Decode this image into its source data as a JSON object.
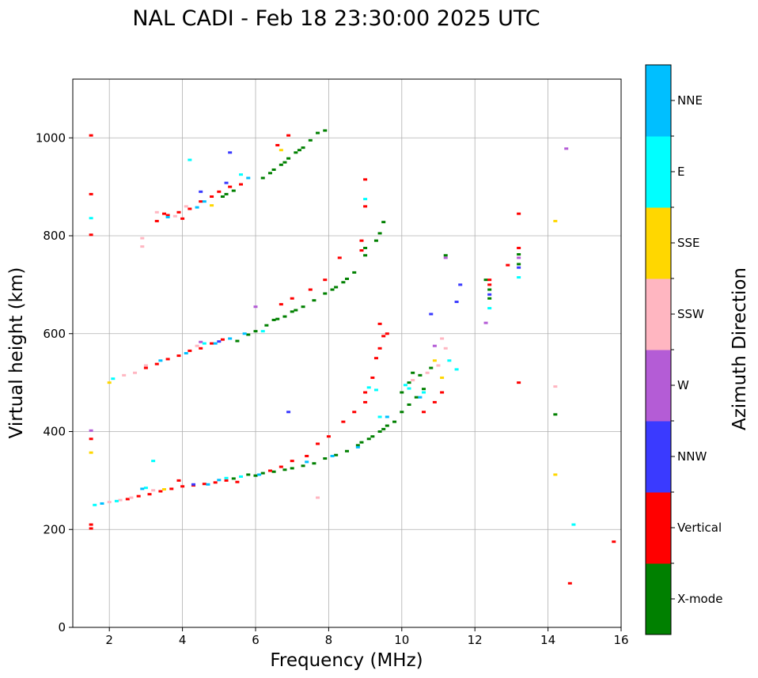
{
  "chart_data": {
    "type": "scatter",
    "title": "NAL CADI - Feb 18 23:30:00 2025 UTC",
    "xlabel": "Frequency (MHz)",
    "ylabel": "Virtual height (km)",
    "xlim": [
      1,
      16
    ],
    "ylim": [
      0,
      1120
    ],
    "xticks": [
      "2",
      "4",
      "6",
      "8",
      "10",
      "12",
      "14",
      "16"
    ],
    "yticks": [
      "0",
      "200",
      "400",
      "600",
      "800",
      "1000"
    ],
    "xtick_values": [
      2,
      4,
      6,
      8,
      10,
      12,
      14,
      16
    ],
    "ytick_values": [
      0,
      200,
      400,
      600,
      800,
      1000
    ],
    "grid": true,
    "colorbar": {
      "label": "Azimuth Direction",
      "categories": [
        "X-mode",
        "Vertical",
        "NNW",
        "W",
        "SSW",
        "SSE",
        "E",
        "NNE"
      ],
      "colors": [
        "#008000",
        "#ff0000",
        "#3a3aff",
        "#b45cd6",
        "#ffb6c1",
        "#ffd700",
        "#00ffff",
        "#00bfff"
      ]
    },
    "series": [
      {
        "name": "X-mode",
        "points": [
          [
            6.2,
            918
          ],
          [
            6.5,
            935
          ],
          [
            6.7,
            945
          ],
          [
            6.9,
            958
          ],
          [
            7.1,
            970
          ],
          [
            7.3,
            980
          ],
          [
            7.5,
            995
          ],
          [
            7.7,
            1010
          ],
          [
            7.9,
            1015
          ],
          [
            6.4,
            928
          ],
          [
            6.8,
            950
          ],
          [
            7.2,
            975
          ],
          [
            5.1,
            880
          ],
          [
            5.4,
            892
          ],
          [
            5.2,
            885
          ],
          [
            5.5,
            585
          ],
          [
            5.8,
            598
          ],
          [
            6.0,
            605
          ],
          [
            6.3,
            617
          ],
          [
            6.5,
            628
          ],
          [
            6.8,
            635
          ],
          [
            7.0,
            645
          ],
          [
            7.3,
            655
          ],
          [
            7.6,
            668
          ],
          [
            7.9,
            682
          ],
          [
            8.2,
            695
          ],
          [
            8.5,
            712
          ],
          [
            8.7,
            725
          ],
          [
            9.0,
            760
          ],
          [
            9.3,
            790
          ],
          [
            9.4,
            805
          ],
          [
            9.5,
            828
          ],
          [
            8.1,
            690
          ],
          [
            8.4,
            705
          ],
          [
            9.0,
            775
          ],
          [
            6.6,
            630
          ],
          [
            7.1,
            648
          ],
          [
            5.4,
            304
          ],
          [
            5.8,
            312
          ],
          [
            6.0,
            310
          ],
          [
            6.2,
            315
          ],
          [
            6.5,
            318
          ],
          [
            6.8,
            322
          ],
          [
            7.0,
            325
          ],
          [
            7.3,
            330
          ],
          [
            7.6,
            335
          ],
          [
            7.9,
            345
          ],
          [
            8.2,
            352
          ],
          [
            8.5,
            360
          ],
          [
            8.8,
            372
          ],
          [
            9.1,
            385
          ],
          [
            9.4,
            400
          ],
          [
            9.6,
            412
          ],
          [
            9.8,
            420
          ],
          [
            10.0,
            440
          ],
          [
            10.2,
            455
          ],
          [
            10.4,
            470
          ],
          [
            10.2,
            500
          ],
          [
            10.5,
            515
          ],
          [
            10.8,
            530
          ],
          [
            10.3,
            520
          ],
          [
            8.9,
            378
          ],
          [
            9.2,
            390
          ],
          [
            9.5,
            405
          ],
          [
            10.6,
            487
          ],
          [
            10.0,
            480
          ],
          [
            12.4,
            672
          ],
          [
            12.4,
            690
          ],
          [
            12.3,
            710
          ],
          [
            13.2,
            762
          ],
          [
            13.2,
            742
          ],
          [
            11.2,
            760
          ],
          [
            14.2,
            435
          ]
        ]
      },
      {
        "name": "Vertical",
        "points": [
          [
            1.5,
            1005
          ],
          [
            1.5,
            885
          ],
          [
            1.5,
            802
          ],
          [
            3.3,
            830
          ],
          [
            3.6,
            842
          ],
          [
            3.9,
            848
          ],
          [
            4.2,
            855
          ],
          [
            4.5,
            870
          ],
          [
            4.8,
            880
          ],
          [
            5.0,
            890
          ],
          [
            5.3,
            900
          ],
          [
            5.6,
            905
          ],
          [
            4.0,
            835
          ],
          [
            3.5,
            845
          ],
          [
            6.6,
            985
          ],
          [
            6.9,
            1005
          ],
          [
            3.0,
            530
          ],
          [
            3.3,
            538
          ],
          [
            3.6,
            548
          ],
          [
            3.9,
            555
          ],
          [
            4.2,
            565
          ],
          [
            4.5,
            570
          ],
          [
            4.8,
            580
          ],
          [
            5.1,
            588
          ],
          [
            6.7,
            660
          ],
          [
            7.0,
            672
          ],
          [
            7.5,
            690
          ],
          [
            7.9,
            710
          ],
          [
            8.3,
            755
          ],
          [
            8.9,
            790
          ],
          [
            8.9,
            770
          ],
          [
            9.0,
            915
          ],
          [
            9.0,
            860
          ],
          [
            9.4,
            620
          ],
          [
            9.6,
            600
          ],
          [
            1.5,
            385
          ],
          [
            1.5,
            210
          ],
          [
            1.5,
            202
          ],
          [
            2.5,
            262
          ],
          [
            2.8,
            268
          ],
          [
            3.1,
            272
          ],
          [
            3.4,
            278
          ],
          [
            3.7,
            283
          ],
          [
            4.0,
            288
          ],
          [
            4.3,
            290
          ],
          [
            4.6,
            293
          ],
          [
            4.9,
            296
          ],
          [
            5.2,
            300
          ],
          [
            6.4,
            320
          ],
          [
            6.7,
            328
          ],
          [
            7.0,
            340
          ],
          [
            7.4,
            350
          ],
          [
            7.7,
            375
          ],
          [
            8.0,
            390
          ],
          [
            8.4,
            420
          ],
          [
            8.7,
            440
          ],
          [
            9.0,
            460
          ],
          [
            9.0,
            480
          ],
          [
            9.2,
            510
          ],
          [
            9.3,
            550
          ],
          [
            9.4,
            570
          ],
          [
            9.5,
            595
          ],
          [
            3.9,
            300
          ],
          [
            5.5,
            297
          ],
          [
            10.6,
            440
          ],
          [
            10.9,
            460
          ],
          [
            11.1,
            480
          ],
          [
            12.4,
            700
          ],
          [
            12.4,
            710
          ],
          [
            13.2,
            845
          ],
          [
            13.2,
            775
          ],
          [
            13.2,
            500
          ],
          [
            12.9,
            740
          ],
          [
            14.6,
            90
          ],
          [
            15.8,
            175
          ]
        ]
      },
      {
        "name": "NNW",
        "points": [
          [
            5.3,
            970
          ],
          [
            5.2,
            908
          ],
          [
            4.5,
            890
          ],
          [
            6.9,
            440
          ],
          [
            11.6,
            700
          ],
          [
            11.5,
            665
          ],
          [
            10.8,
            640
          ],
          [
            12.4,
            680
          ],
          [
            13.2,
            735
          ],
          [
            5.0,
            584
          ],
          [
            4.3,
            292
          ]
        ]
      },
      {
        "name": "W",
        "points": [
          [
            1.5,
            402
          ],
          [
            6.0,
            655
          ],
          [
            11.2,
            755
          ],
          [
            13.2,
            755
          ],
          [
            14.5,
            978
          ],
          [
            12.3,
            622
          ],
          [
            10.9,
            575
          ],
          [
            4.5,
            583
          ]
        ]
      },
      {
        "name": "SSW",
        "points": [
          [
            2.9,
            795
          ],
          [
            2.9,
            778
          ],
          [
            3.3,
            848
          ],
          [
            2.4,
            515
          ],
          [
            2.7,
            520
          ],
          [
            3.0,
            535
          ],
          [
            4.1,
            860
          ],
          [
            2.0,
            256
          ],
          [
            2.3,
            260
          ],
          [
            2.6,
            265
          ],
          [
            3.2,
            280
          ],
          [
            4.4,
            575
          ],
          [
            10.7,
            520
          ],
          [
            11.0,
            535
          ],
          [
            11.2,
            570
          ],
          [
            10.3,
            505
          ],
          [
            11.1,
            590
          ],
          [
            14.2,
            492
          ],
          [
            7.7,
            265
          ],
          [
            3.8,
            840
          ]
        ]
      },
      {
        "name": "SSE",
        "points": [
          [
            1.5,
            357
          ],
          [
            2.0,
            500
          ],
          [
            6.7,
            975
          ],
          [
            10.9,
            545
          ],
          [
            11.1,
            510
          ],
          [
            14.2,
            830
          ],
          [
            14.2,
            312
          ],
          [
            4.8,
            862
          ],
          [
            3.5,
            282
          ]
        ]
      },
      {
        "name": "E",
        "points": [
          [
            1.5,
            836
          ],
          [
            4.2,
            955
          ],
          [
            5.6,
            925
          ],
          [
            1.6,
            250
          ],
          [
            2.2,
            258
          ],
          [
            3.2,
            340
          ],
          [
            5.2,
            305
          ],
          [
            5.6,
            308
          ],
          [
            9.0,
            875
          ],
          [
            9.1,
            490
          ],
          [
            9.3,
            485
          ],
          [
            10.1,
            495
          ],
          [
            10.6,
            480
          ],
          [
            11.3,
            545
          ],
          [
            11.5,
            527
          ],
          [
            12.4,
            652
          ],
          [
            13.2,
            715
          ],
          [
            14.7,
            210
          ],
          [
            6.2,
            605
          ],
          [
            4.6,
            580
          ],
          [
            2.1,
            508
          ],
          [
            9.4,
            430
          ],
          [
            10.2,
            488
          ],
          [
            3.0,
            285
          ]
        ]
      },
      {
        "name": "NNE",
        "points": [
          [
            4.6,
            870
          ],
          [
            4.4,
            858
          ],
          [
            5.8,
            918
          ],
          [
            3.6,
            838
          ],
          [
            1.8,
            253
          ],
          [
            2.9,
            283
          ],
          [
            4.7,
            292
          ],
          [
            5.0,
            301
          ],
          [
            6.1,
            312
          ],
          [
            7.4,
            338
          ],
          [
            8.1,
            350
          ],
          [
            8.8,
            368
          ],
          [
            9.6,
            430
          ],
          [
            10.5,
            470
          ],
          [
            5.3,
            590
          ],
          [
            5.7,
            600
          ],
          [
            3.4,
            545
          ],
          [
            4.1,
            560
          ],
          [
            4.9,
            580
          ]
        ]
      }
    ]
  }
}
